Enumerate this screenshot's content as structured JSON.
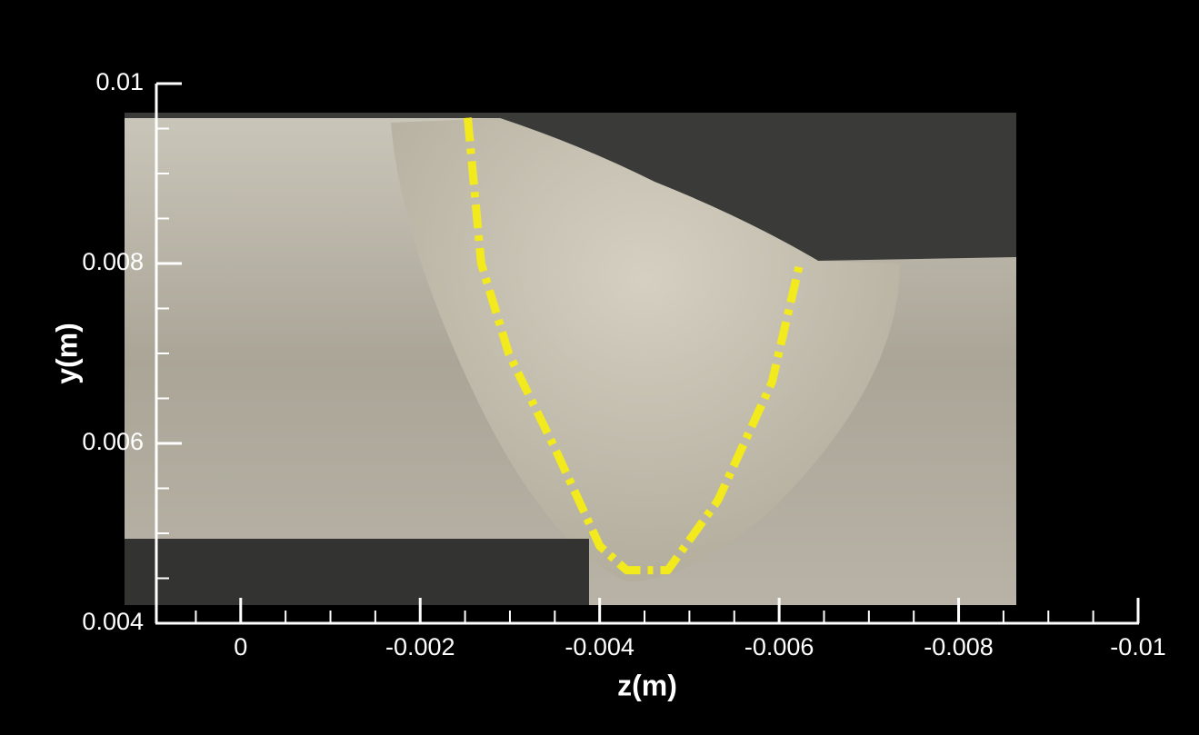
{
  "chart_data": {
    "type": "line",
    "x_label": "z(m)",
    "y_label": "y(m)",
    "xlim": [
      0.00094,
      -0.01
    ],
    "ylim": [
      0.004,
      0.01
    ],
    "xticks": [
      0,
      -0.002,
      -0.004,
      -0.006,
      -0.008,
      -0.01
    ],
    "yticks": [
      0.004,
      0.006,
      0.008,
      0.01
    ],
    "xminor": [
      0.0005,
      -0.0005,
      -0.001,
      -0.0015,
      -0.0025,
      -0.003,
      -0.0035,
      -0.0045,
      -0.005,
      -0.0055,
      -0.0065,
      -0.007,
      -0.0075,
      -0.0085,
      -0.009,
      -0.0095
    ],
    "yminor": [
      0.0045,
      0.005,
      0.0055,
      0.0065,
      0.007,
      0.0075,
      0.0085,
      0.009,
      0.0095
    ],
    "series": [
      {
        "color": "#f2ea1c",
        "x": [
          -0.00253,
          -0.00268,
          -0.00299,
          -0.00349,
          -0.004,
          -0.0043,
          -0.00476,
          -0.00532,
          -0.00592,
          -0.00623
        ],
        "y": [
          0.00962,
          0.008,
          0.00699,
          0.00597,
          0.00486,
          0.00459,
          0.00459,
          0.00537,
          0.00668,
          0.008
        ]
      }
    ]
  }
}
